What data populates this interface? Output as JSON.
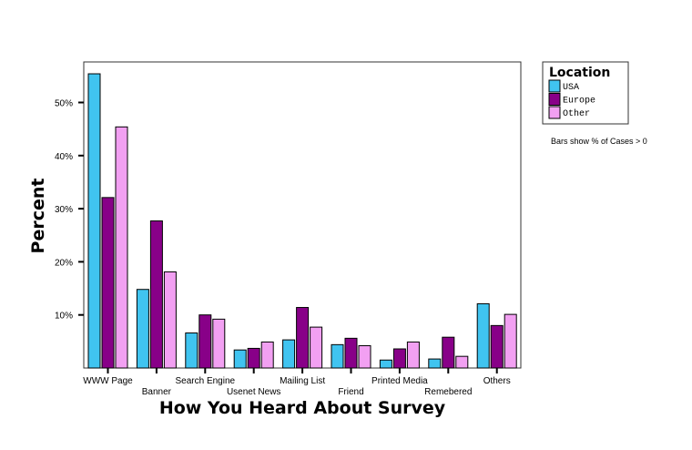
{
  "chart_data": {
    "type": "bar",
    "title": "",
    "xlabel": "How You Heard About Survey",
    "ylabel": "Percent",
    "ylim": [
      0,
      58
    ],
    "yticks": [
      10,
      20,
      30,
      40,
      50
    ],
    "ytick_labels": [
      "10%",
      "20%",
      "30%",
      "40%",
      "50%"
    ],
    "grid": false,
    "legend_position": "right",
    "legend_title": "Location",
    "categories": [
      "WWW Page",
      "Banner",
      "Search Engine",
      "Usenet News",
      "Mailing List",
      "Friend",
      "Printed Media",
      "Remebered",
      "Others"
    ],
    "series": [
      {
        "name": "USA",
        "color": "#40C4F0",
        "values": [
          55.4,
          14.8,
          6.6,
          3.4,
          5.3,
          4.4,
          1.5,
          1.7,
          12.1
        ]
      },
      {
        "name": "Europe",
        "color": "#880088",
        "values": [
          32.1,
          27.7,
          10.0,
          3.7,
          11.4,
          5.6,
          3.6,
          5.8,
          8.0
        ]
      },
      {
        "name": "Other",
        "color": "#F2A0F2",
        "values": [
          45.4,
          18.1,
          9.2,
          4.9,
          7.7,
          4.2,
          4.9,
          2.2,
          10.1
        ]
      }
    ],
    "annotation": "Bars show % of Cases > 0"
  }
}
